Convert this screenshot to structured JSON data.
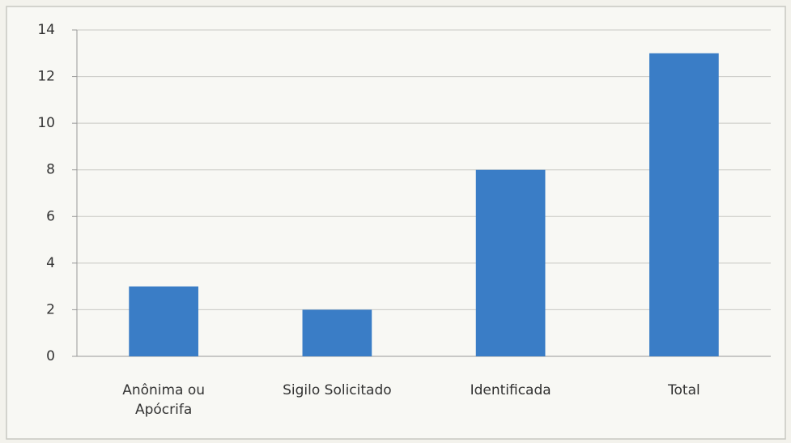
{
  "chart_data": {
    "type": "bar",
    "categories": [
      "Anônima ou Apócrifa",
      "Sigilo Solicitado",
      "Identificada",
      "Total"
    ],
    "values": [
      3,
      2,
      8,
      13
    ],
    "color": "#3a7dc6",
    "ylim": [
      0,
      14
    ],
    "yticks": [
      0,
      2,
      4,
      6,
      8,
      10,
      12,
      14
    ],
    "grid": true
  }
}
